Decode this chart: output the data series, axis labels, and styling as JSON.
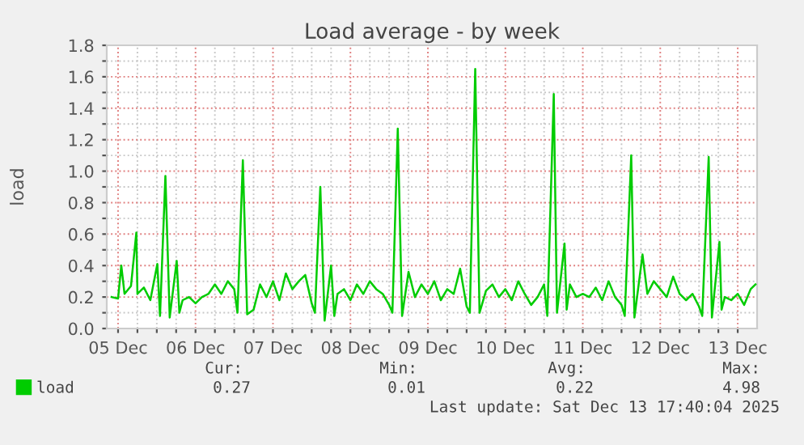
{
  "chart_data": {
    "type": "line",
    "title": "Load average - by week",
    "ylabel": "load",
    "x": [
      "2025-12-04T22:00",
      "2025-12-05T00:00",
      "2025-12-05T01:00",
      "2025-12-05T02:00",
      "2025-12-05T04:00",
      "2025-12-05T05:40",
      "2025-12-05T06:00",
      "2025-12-05T08:00",
      "2025-12-05T10:00",
      "2025-12-05T12:10",
      "2025-12-05T13:00",
      "2025-12-05T14:40",
      "2025-12-05T16:00",
      "2025-12-05T18:10",
      "2025-12-05T19:00",
      "2025-12-05T20:00",
      "2025-12-05T22:00",
      "2025-12-06T00:00",
      "2025-12-06T02:00",
      "2025-12-06T04:00",
      "2025-12-06T06:00",
      "2025-12-06T08:00",
      "2025-12-06T10:00",
      "2025-12-06T12:00",
      "2025-12-06T13:00",
      "2025-12-06T14:40",
      "2025-12-06T16:00",
      "2025-12-06T18:00",
      "2025-12-06T20:00",
      "2025-12-06T22:00",
      "2025-12-07T00:00",
      "2025-12-07T02:00",
      "2025-12-07T04:00",
      "2025-12-07T06:00",
      "2025-12-07T08:00",
      "2025-12-07T10:00",
      "2025-12-07T12:00",
      "2025-12-07T13:00",
      "2025-12-07T14:40",
      "2025-12-07T16:00",
      "2025-12-07T18:00",
      "2025-12-07T19:00",
      "2025-12-07T20:00",
      "2025-12-07T22:00",
      "2025-12-08T00:00",
      "2025-12-08T02:00",
      "2025-12-08T04:00",
      "2025-12-08T06:00",
      "2025-12-08T08:00",
      "2025-12-08T10:00",
      "2025-12-08T12:00",
      "2025-12-08T13:00",
      "2025-12-08T14:40",
      "2025-12-08T16:00",
      "2025-12-08T18:00",
      "2025-12-08T20:00",
      "2025-12-08T22:00",
      "2025-12-09T00:00",
      "2025-12-09T02:00",
      "2025-12-09T04:00",
      "2025-12-09T06:00",
      "2025-12-09T08:00",
      "2025-12-09T10:00",
      "2025-12-09T12:00",
      "2025-12-09T13:00",
      "2025-12-09T14:40",
      "2025-12-09T16:00",
      "2025-12-09T18:00",
      "2025-12-09T20:00",
      "2025-12-09T22:00",
      "2025-12-10T00:00",
      "2025-12-10T02:00",
      "2025-12-10T04:00",
      "2025-12-10T06:00",
      "2025-12-10T08:00",
      "2025-12-10T10:00",
      "2025-12-10T12:00",
      "2025-12-10T13:00",
      "2025-12-10T15:00",
      "2025-12-10T16:00",
      "2025-12-10T18:20",
      "2025-12-10T19:00",
      "2025-12-10T20:00",
      "2025-12-10T22:00",
      "2025-12-11T00:00",
      "2025-12-11T02:00",
      "2025-12-11T04:00",
      "2025-12-11T06:00",
      "2025-12-11T08:00",
      "2025-12-11T10:00",
      "2025-12-11T12:00",
      "2025-12-11T13:00",
      "2025-12-11T15:00",
      "2025-12-11T16:00",
      "2025-12-11T18:30",
      "2025-12-11T20:00",
      "2025-12-11T22:00",
      "2025-12-12T00:00",
      "2025-12-12T02:00",
      "2025-12-12T04:00",
      "2025-12-12T06:00",
      "2025-12-12T08:00",
      "2025-12-12T10:00",
      "2025-12-12T12:00",
      "2025-12-12T13:00",
      "2025-12-12T15:00",
      "2025-12-12T16:00",
      "2025-12-12T18:20",
      "2025-12-12T19:00",
      "2025-12-12T20:00",
      "2025-12-12T22:00",
      "2025-12-13T00:00",
      "2025-12-13T02:00",
      "2025-12-13T04:00",
      "2025-12-13T05:30"
    ],
    "series": [
      {
        "name": "load",
        "color": "#00cc00",
        "values": [
          0.2,
          0.19,
          0.4,
          0.22,
          0.27,
          0.61,
          0.22,
          0.26,
          0.18,
          0.41,
          0.08,
          0.97,
          0.07,
          0.43,
          0.1,
          0.18,
          0.2,
          0.16,
          0.2,
          0.22,
          0.28,
          0.22,
          0.3,
          0.25,
          0.1,
          1.07,
          0.09,
          0.12,
          0.28,
          0.2,
          0.3,
          0.18,
          0.35,
          0.25,
          0.3,
          0.34,
          0.16,
          0.1,
          0.9,
          0.05,
          0.4,
          0.08,
          0.22,
          0.25,
          0.18,
          0.28,
          0.22,
          0.3,
          0.25,
          0.22,
          0.15,
          0.1,
          1.27,
          0.08,
          0.36,
          0.2,
          0.28,
          0.22,
          0.3,
          0.18,
          0.25,
          0.22,
          0.38,
          0.14,
          0.1,
          1.65,
          0.1,
          0.24,
          0.28,
          0.2,
          0.25,
          0.18,
          0.3,
          0.22,
          0.15,
          0.2,
          0.28,
          0.08,
          1.49,
          0.1,
          0.54,
          0.12,
          0.28,
          0.2,
          0.22,
          0.2,
          0.26,
          0.18,
          0.3,
          0.2,
          0.15,
          0.08,
          1.1,
          0.07,
          0.47,
          0.22,
          0.3,
          0.25,
          0.2,
          0.33,
          0.22,
          0.18,
          0.22,
          0.14,
          0.08,
          1.09,
          0.07,
          0.55,
          0.12,
          0.2,
          0.18,
          0.22,
          0.15,
          0.25,
          0.28
        ]
      }
    ],
    "xlim": [
      "2025-12-04T20:30",
      "2025-12-13T06:00"
    ],
    "xticks": [
      {
        "value": "2025-12-05T00:00",
        "label": "05 Dec"
      },
      {
        "value": "2025-12-05T06:00",
        "label": null
      },
      {
        "value": "2025-12-05T12:00",
        "label": null
      },
      {
        "value": "2025-12-05T18:00",
        "label": null
      },
      {
        "value": "2025-12-06T00:00",
        "label": "06 Dec"
      },
      {
        "value": "2025-12-06T06:00",
        "label": null
      },
      {
        "value": "2025-12-06T12:00",
        "label": null
      },
      {
        "value": "2025-12-06T18:00",
        "label": null
      },
      {
        "value": "2025-12-07T00:00",
        "label": "07 Dec"
      },
      {
        "value": "2025-12-07T06:00",
        "label": null
      },
      {
        "value": "2025-12-07T12:00",
        "label": null
      },
      {
        "value": "2025-12-07T18:00",
        "label": null
      },
      {
        "value": "2025-12-08T00:00",
        "label": "08 Dec"
      },
      {
        "value": "2025-12-08T06:00",
        "label": null
      },
      {
        "value": "2025-12-08T12:00",
        "label": null
      },
      {
        "value": "2025-12-08T18:00",
        "label": null
      },
      {
        "value": "2025-12-09T00:00",
        "label": "09 Dec"
      },
      {
        "value": "2025-12-09T06:00",
        "label": null
      },
      {
        "value": "2025-12-09T12:00",
        "label": null
      },
      {
        "value": "2025-12-09T18:00",
        "label": null
      },
      {
        "value": "2025-12-10T00:00",
        "label": "10 Dec"
      },
      {
        "value": "2025-12-10T06:00",
        "label": null
      },
      {
        "value": "2025-12-10T12:00",
        "label": null
      },
      {
        "value": "2025-12-10T18:00",
        "label": null
      },
      {
        "value": "2025-12-11T00:00",
        "label": "11 Dec"
      },
      {
        "value": "2025-12-11T06:00",
        "label": null
      },
      {
        "value": "2025-12-11T12:00",
        "label": null
      },
      {
        "value": "2025-12-11T18:00",
        "label": null
      },
      {
        "value": "2025-12-12T00:00",
        "label": "12 Dec"
      },
      {
        "value": "2025-12-12T06:00",
        "label": null
      },
      {
        "value": "2025-12-12T12:00",
        "label": null
      },
      {
        "value": "2025-12-12T18:00",
        "label": null
      },
      {
        "value": "2025-12-13T00:00",
        "label": "13 Dec"
      }
    ],
    "ylim": [
      0,
      1.8
    ],
    "yticks": [
      {
        "value": 0,
        "label": "0.0"
      },
      {
        "value": 0.1,
        "label": null
      },
      {
        "value": 0.2,
        "label": "0.2"
      },
      {
        "value": 0.3,
        "label": null
      },
      {
        "value": 0.4,
        "label": "0.4"
      },
      {
        "value": 0.5,
        "label": null
      },
      {
        "value": 0.6,
        "label": "0.6"
      },
      {
        "value": 0.7,
        "label": null
      },
      {
        "value": 0.8,
        "label": "0.8"
      },
      {
        "value": 0.9,
        "label": null
      },
      {
        "value": 1.0,
        "label": "1.0"
      },
      {
        "value": 1.1,
        "label": null
      },
      {
        "value": 1.2,
        "label": "1.2"
      },
      {
        "value": 1.3,
        "label": null
      },
      {
        "value": 1.4,
        "label": "1.4"
      },
      {
        "value": 1.5,
        "label": null
      },
      {
        "value": 1.6,
        "label": "1.6"
      },
      {
        "value": 1.7,
        "label": null
      },
      {
        "value": 1.8,
        "label": "1.8"
      }
    ],
    "grid": true,
    "legend": "bottom left",
    "marker": "none",
    "line_style": "solid",
    "annotations": [
      "Cur:",
      "Min:",
      "Avg:",
      "Max:",
      "0.27",
      "0.01",
      "0.22",
      "4.98",
      "Last update: Sat Dec 13 17:40:04 2025"
    ]
  }
}
